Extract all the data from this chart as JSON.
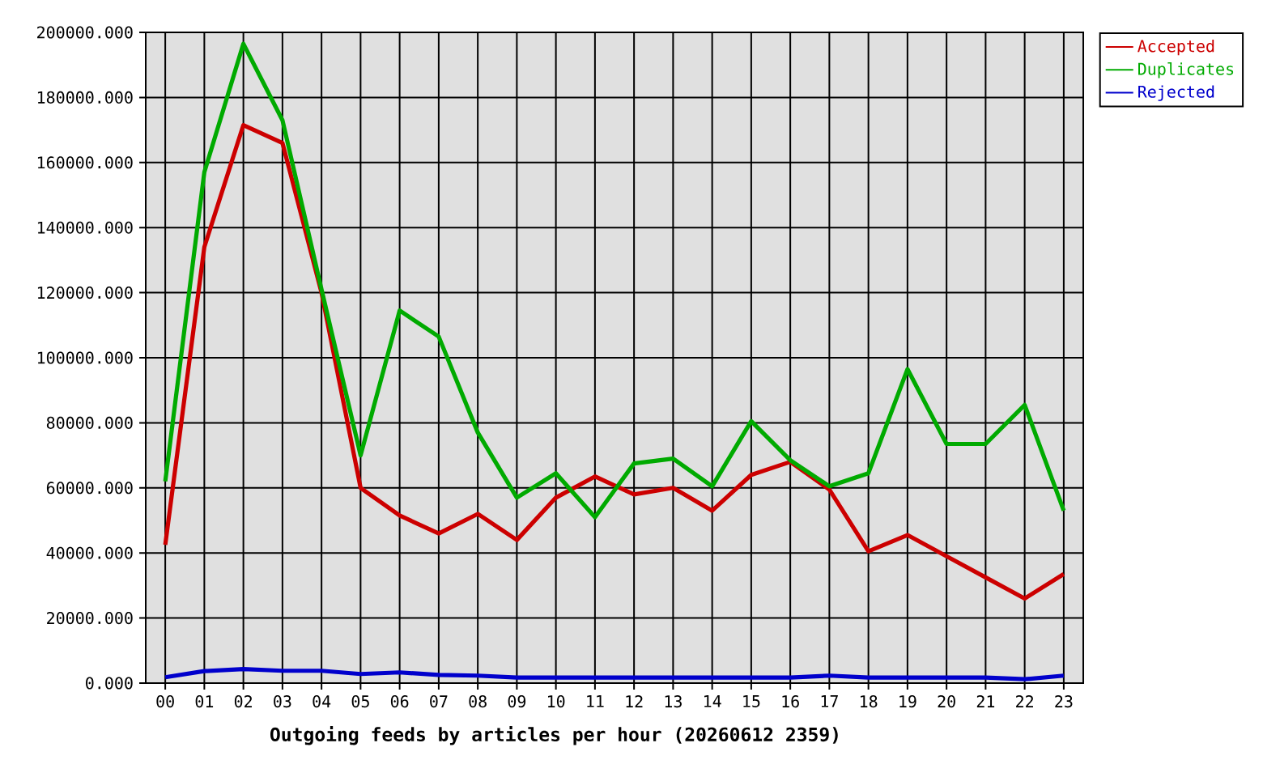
{
  "chart_data": {
    "type": "line",
    "xlabel": "Outgoing feeds by articles per hour (20260612 2359)",
    "categories": [
      "00",
      "01",
      "02",
      "03",
      "04",
      "05",
      "06",
      "07",
      "08",
      "09",
      "10",
      "11",
      "12",
      "13",
      "14",
      "15",
      "16",
      "17",
      "18",
      "19",
      "20",
      "21",
      "22",
      "23"
    ],
    "series": [
      {
        "name": "Accepted",
        "color": "#cc0000",
        "values": [
          42500,
          134000,
          171500,
          166000,
          120000,
          60000,
          51500,
          46000,
          52000,
          44000,
          57000,
          63500,
          58000,
          60000,
          53000,
          64000,
          68000,
          59500,
          40500,
          45500,
          39000,
          32500,
          26000,
          33500
        ]
      },
      {
        "name": "Duplicates",
        "color": "#00aa00",
        "values": [
          62000,
          157000,
          196500,
          173000,
          121000,
          70000,
          114500,
          106500,
          77000,
          57000,
          64500,
          51000,
          67500,
          69000,
          60500,
          80500,
          68500,
          60500,
          64500,
          96500,
          73500,
          73500,
          85500,
          53000
        ]
      },
      {
        "name": "Rejected",
        "color": "#0000cc",
        "values": [
          1800,
          3700,
          4300,
          3800,
          3800,
          2800,
          3300,
          2500,
          2300,
          1700,
          1700,
          1700,
          1700,
          1700,
          1700,
          1700,
          1700,
          2300,
          1700,
          1700,
          1700,
          1700,
          1200,
          2300
        ]
      }
    ],
    "ylim": [
      0,
      200000
    ],
    "yticks": [
      {
        "value": 0,
        "label": "0.000"
      },
      {
        "value": 20000,
        "label": "20000.000"
      },
      {
        "value": 40000,
        "label": "40000.000"
      },
      {
        "value": 60000,
        "label": "60000.000"
      },
      {
        "value": 80000,
        "label": "80000.000"
      },
      {
        "value": 100000,
        "label": "100000.000"
      },
      {
        "value": 120000,
        "label": "120000.000"
      },
      {
        "value": 140000,
        "label": "140000.000"
      },
      {
        "value": 160000,
        "label": "160000.000"
      },
      {
        "value": 180000,
        "label": "180000.000"
      },
      {
        "value": 200000,
        "label": "200000.000"
      }
    ],
    "grid": true,
    "legend": "top right"
  }
}
